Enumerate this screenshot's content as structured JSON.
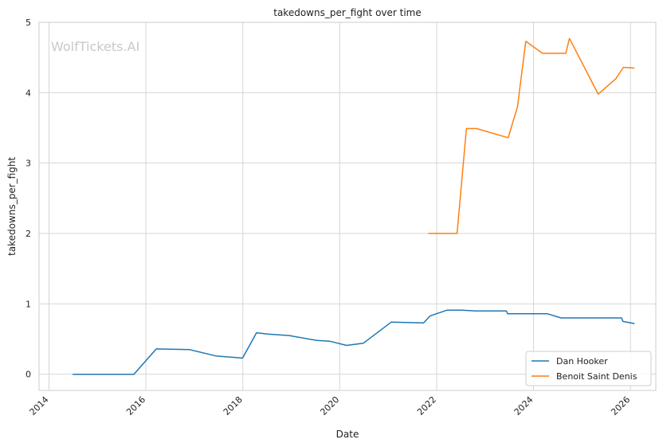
{
  "chart_data": {
    "type": "line",
    "title": "takedowns_per_fight over time",
    "xlabel": "Date",
    "ylabel": "takedowns_per_fight",
    "watermark": "WolfTickets.AI",
    "xlim": [
      "2013-10-18",
      "2026-07-11"
    ],
    "ylim": [
      -0.23,
      5.0
    ],
    "x_ticks": [
      "2014",
      "2016",
      "2018",
      "2020",
      "2022",
      "2024",
      "2026"
    ],
    "y_ticks": [
      0,
      1,
      2,
      3,
      4,
      5
    ],
    "grid": true,
    "legend_position": "lower-right",
    "series": [
      {
        "name": "Dan Hooker",
        "color": "#1f77b4",
        "points": [
          [
            "2014-06-28",
            0.0
          ],
          [
            "2015-10-03",
            0.0
          ],
          [
            "2016-03-20",
            0.36
          ],
          [
            "2016-11-26",
            0.35
          ],
          [
            "2017-06-11",
            0.26
          ],
          [
            "2017-12-30",
            0.23
          ],
          [
            "2018-04-14",
            0.59
          ],
          [
            "2018-07-07",
            0.57
          ],
          [
            "2018-12-15",
            0.55
          ],
          [
            "2019-07-13",
            0.48
          ],
          [
            "2019-10-18",
            0.47
          ],
          [
            "2020-02-22",
            0.41
          ],
          [
            "2020-06-27",
            0.44
          ],
          [
            "2021-01-23",
            0.74
          ],
          [
            "2021-09-25",
            0.73
          ],
          [
            "2021-11-13",
            0.83
          ],
          [
            "2022-03-19",
            0.91
          ],
          [
            "2022-07-09",
            0.91
          ],
          [
            "2022-10-22",
            0.9
          ],
          [
            "2023-06-10",
            0.9
          ],
          [
            "2023-06-20",
            0.86
          ],
          [
            "2024-04-13",
            0.86
          ],
          [
            "2024-07-27",
            0.8
          ],
          [
            "2025-10-25",
            0.8
          ],
          [
            "2025-11-05",
            0.75
          ],
          [
            "2026-01-31",
            0.72
          ]
        ]
      },
      {
        "name": "Benoit Saint Denis",
        "color": "#ff7f0e",
        "points": [
          [
            "2021-10-30",
            2.0
          ],
          [
            "2022-06-04",
            2.0
          ],
          [
            "2022-08-13",
            3.49
          ],
          [
            "2022-10-29",
            3.49
          ],
          [
            "2023-06-24",
            3.36
          ],
          [
            "2023-09-02",
            3.8
          ],
          [
            "2023-11-04",
            4.73
          ],
          [
            "2024-03-09",
            4.56
          ],
          [
            "2024-08-31",
            4.56
          ],
          [
            "2024-09-28",
            4.77
          ],
          [
            "2025-05-03",
            3.98
          ],
          [
            "2025-09-13",
            4.2
          ],
          [
            "2025-11-08",
            4.36
          ],
          [
            "2026-01-31",
            4.35
          ]
        ]
      }
    ]
  }
}
